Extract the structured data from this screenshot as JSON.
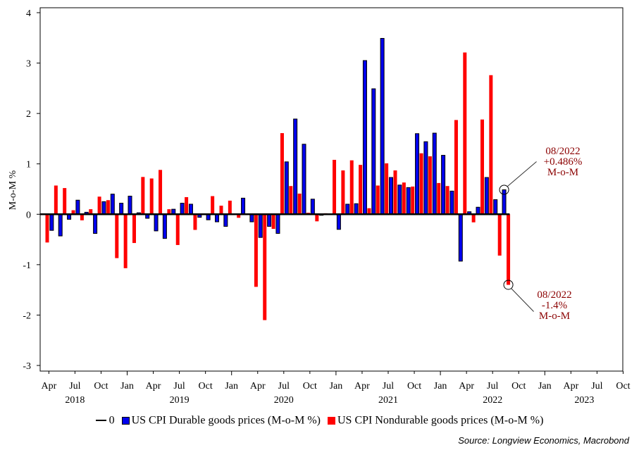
{
  "chart_data": {
    "type": "bar",
    "title": "",
    "ylabel": "M-o-M %",
    "xlabel": "",
    "ylim": [
      -3,
      4
    ],
    "yticks": [
      "4",
      "3",
      "2",
      "1",
      "0",
      "-1",
      "-2",
      "-3"
    ],
    "xrange": [
      "2018-03",
      "2023-10"
    ],
    "x_tick_labels": [
      "Apr",
      "Jul",
      "Oct",
      "Jan",
      "Apr",
      "Jul",
      "Oct",
      "Jan",
      "Apr",
      "Jul",
      "Oct",
      "Jan",
      "Apr",
      "Jul",
      "Oct",
      "Jan",
      "Apr",
      "Jul",
      "Oct",
      "Jan",
      "Apr",
      "Jul",
      "Oct"
    ],
    "year_labels": [
      "2018",
      "2019",
      "2020",
      "2021",
      "2022",
      "2023"
    ],
    "grid": false,
    "legend_position": "bottom",
    "months": [
      "2018-03",
      "2018-04",
      "2018-05",
      "2018-06",
      "2018-07",
      "2018-08",
      "2018-09",
      "2018-10",
      "2018-11",
      "2018-12",
      "2019-01",
      "2019-02",
      "2019-03",
      "2019-04",
      "2019-05",
      "2019-06",
      "2019-07",
      "2019-08",
      "2019-09",
      "2019-10",
      "2019-11",
      "2019-12",
      "2020-01",
      "2020-02",
      "2020-03",
      "2020-04",
      "2020-05",
      "2020-06",
      "2020-07",
      "2020-08",
      "2020-09",
      "2020-10",
      "2020-11",
      "2020-12",
      "2021-01",
      "2021-02",
      "2021-03",
      "2021-04",
      "2021-05",
      "2021-06",
      "2021-07",
      "2021-08",
      "2021-09",
      "2021-10",
      "2021-11",
      "2021-12",
      "2022-01",
      "2022-02",
      "2022-03",
      "2022-04",
      "2022-05",
      "2022-06",
      "2022-07",
      "2022-08"
    ],
    "series": [
      {
        "name": "US CPI Durable goods prices (M-o-M %)",
        "color": "#0000ee",
        "values": [
          0.0,
          -0.32,
          -0.43,
          -0.1,
          0.28,
          0.04,
          -0.38,
          0.25,
          0.4,
          0.22,
          0.36,
          0.03,
          -0.08,
          -0.33,
          -0.48,
          0.1,
          0.22,
          0.2,
          -0.06,
          -0.11,
          -0.15,
          -0.24,
          0.0,
          0.32,
          -0.15,
          -0.46,
          -0.24,
          -0.38,
          1.04,
          1.89,
          1.39,
          0.3,
          -0.02,
          0.01,
          -0.3,
          0.2,
          0.21,
          3.05,
          2.49,
          3.49,
          0.73,
          0.58,
          0.53,
          1.6,
          1.44,
          1.61,
          1.17,
          0.46,
          -0.93,
          0.05,
          0.14,
          0.73,
          0.29,
          0.486
        ]
      },
      {
        "name": "US CPI Nondurable goods prices (M-o-M %)",
        "color": "#ff0000",
        "values": [
          -0.56,
          0.57,
          0.52,
          0.08,
          -0.12,
          0.1,
          0.35,
          0.28,
          -0.87,
          -1.07,
          -0.57,
          0.74,
          0.71,
          0.88,
          0.1,
          -0.61,
          0.34,
          -0.31,
          0.0,
          0.36,
          0.17,
          0.27,
          -0.07,
          0.0,
          -1.44,
          -2.1,
          -0.29,
          1.61,
          0.56,
          0.41,
          0.03,
          -0.14,
          0.02,
          1.08,
          0.87,
          1.07,
          0.98,
          0.12,
          0.57,
          1.01,
          0.87,
          0.63,
          0.55,
          1.21,
          1.15,
          0.62,
          0.56,
          1.87,
          3.21,
          -0.16,
          1.88,
          2.76,
          -0.82,
          -1.4
        ]
      }
    ],
    "zero_line_label": "0",
    "annotations": [
      {
        "series": 0,
        "month": "2022-08",
        "lines": [
          "08/2022",
          "+0.486%",
          "M-o-M"
        ]
      },
      {
        "series": 1,
        "month": "2022-08",
        "lines": [
          "08/2022",
          "-1.4%",
          "M-o-M"
        ]
      }
    ]
  },
  "source": "Source: Longview Economics, Macrobond"
}
